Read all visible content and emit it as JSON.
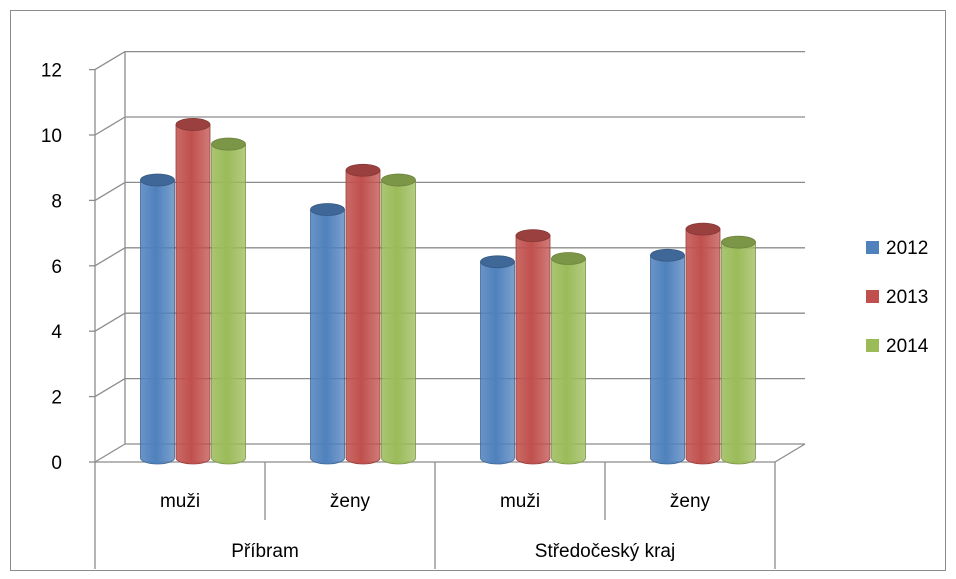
{
  "chart_data": {
    "type": "bar",
    "subtype": "3d-clustered-column",
    "title": "",
    "xlabel": "",
    "ylabel": "",
    "ylim": [
      0,
      12
    ],
    "yticks": [
      "0",
      "2",
      "4",
      "6",
      "8",
      "10",
      "12"
    ],
    "grid": true,
    "legend_position": "right",
    "groups": [
      {
        "label": "Příbram",
        "categories": [
          "muži",
          "ženy"
        ]
      },
      {
        "label": "Středočeský kraj",
        "categories": [
          "muži",
          "ženy"
        ]
      }
    ],
    "categories": [
      "muži",
      "ženy",
      "muži",
      "ženy"
    ],
    "series": [
      {
        "name": "2012",
        "color": "#4F81BD",
        "values": [
          8.5,
          7.6,
          6.0,
          6.2
        ]
      },
      {
        "name": "2013",
        "color": "#C0504D",
        "values": [
          10.2,
          8.8,
          6.8,
          7.0
        ]
      },
      {
        "name": "2014",
        "color": "#9BBB59",
        "values": [
          9.6,
          8.5,
          6.1,
          6.6
        ]
      }
    ]
  }
}
